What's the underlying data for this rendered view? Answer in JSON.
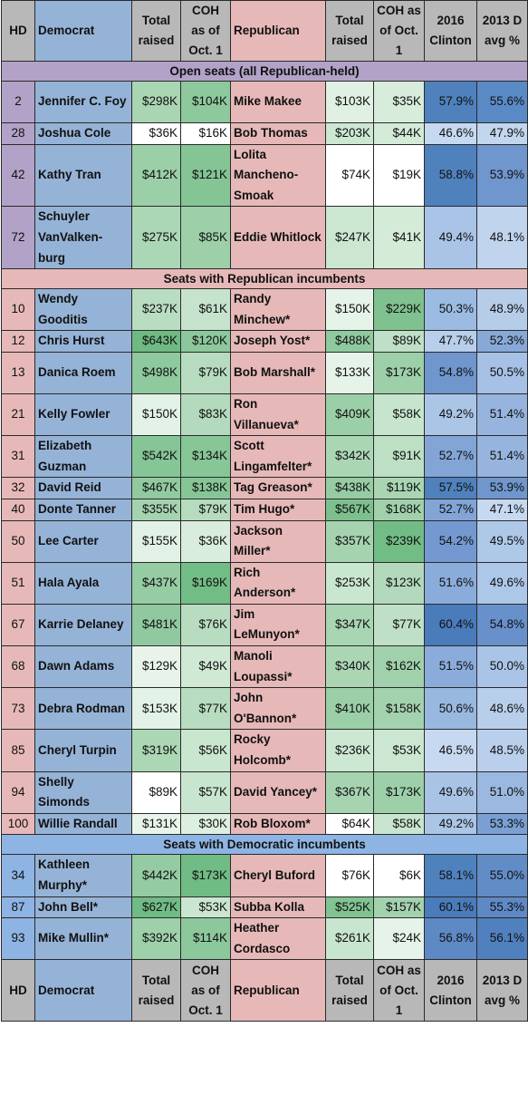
{
  "header": {
    "hd": "HD",
    "democrat": "Democrat",
    "total_raised": "Total raised",
    "coh": "COH as of Oct. 1",
    "republican": "Republican",
    "clinton": "2016 Clinton",
    "davg": "2013 D avg %"
  },
  "sections": [
    {
      "title": "Open seats (all Republican-held)",
      "color": "#b2a2c7",
      "hd_color": "#b2a2c7",
      "rows": [
        {
          "hd": "2",
          "dem": "Jennifer C. Foy",
          "dem_raised": "$298K",
          "dem_coh": "$104K",
          "rep": "Mike Makee",
          "rep_raised": "$103K",
          "rep_coh": "$35K",
          "clinton": "57.9%",
          "davg": "55.6%",
          "lines": 2,
          "c": [
            "#a9d5b3",
            "#8ec99d",
            "#e0f0e3",
            "#d7ecdb",
            "#4f81bd",
            "#5a8ac6"
          ]
        },
        {
          "hd": "28",
          "dem": "Joshua Cole",
          "dem_raised": "$36K",
          "dem_coh": "$16K",
          "rep": "Bob Thomas",
          "rep_raised": "$203K",
          "rep_coh": "$44K",
          "clinton": "46.6%",
          "davg": "47.9%",
          "lines": 1,
          "c": [
            "#ffffff",
            "#ffffff",
            "#cce7d2",
            "#d4ebd8",
            "#c6d9f0",
            "#c2d6ee"
          ]
        },
        {
          "hd": "42",
          "dem": "Kathy Tran",
          "dem_raised": "$412K",
          "dem_coh": "$121K",
          "rep": "Lolita Mancheno-Smoak",
          "rep_raised": "$74K",
          "rep_coh": "$19K",
          "clinton": "58.8%",
          "davg": "53.9%",
          "lines": 3,
          "c": [
            "#9bcfa7",
            "#85c595",
            "#ffffff",
            "#ffffff",
            "#4f81bd",
            "#6f96cd"
          ]
        },
        {
          "hd": "72",
          "dem": "Schuyler VanValken-burg",
          "dem_raised": "$275K",
          "dem_coh": "$85K",
          "rep": "Eddie Whitlock",
          "rep_raised": "$247K",
          "rep_coh": "$41K",
          "clinton": "49.4%",
          "davg": "48.1%",
          "lines": 3,
          "c": [
            "#acd7b6",
            "#9dd0a9",
            "#cbe7d1",
            "#d4ebd8",
            "#a9c4e6",
            "#c0d4ed"
          ]
        }
      ]
    },
    {
      "title": "Seats with Republican incumbents",
      "color": "#e6b9b8",
      "hd_color": "#e6b9b8",
      "rows": [
        {
          "hd": "10",
          "dem": "Wendy Gooditis",
          "dem_raised": "$237K",
          "dem_coh": "$61K",
          "rep": "Randy Minchew*",
          "rep_raised": "$150K",
          "rep_coh": "$229K",
          "clinton": "50.3%",
          "davg": "48.9%",
          "lines": 2,
          "c": [
            "#b9ddc1",
            "#c6e4cd",
            "#e5f3e8",
            "#7fc28f",
            "#9bbbe2",
            "#b6cdea"
          ]
        },
        {
          "hd": "12",
          "dem": "Chris Hurst",
          "dem_raised": "$643K",
          "dem_coh": "$120K",
          "rep": "Joseph Yost*",
          "rep_raised": "$488K",
          "rep_coh": "$89K",
          "clinton": "47.7%",
          "davg": "52.3%",
          "lines": 1,
          "c": [
            "#6fba83",
            "#8cc89c",
            "#8fc99e",
            "#bfe0c7",
            "#b7cfeb",
            "#87a9d8"
          ]
        },
        {
          "hd": "13",
          "dem": "Danica Roem",
          "dem_raised": "$498K",
          "dem_coh": "$79K",
          "rep": "Bob Marshall*",
          "rep_raised": "$133K",
          "rep_coh": "$173K",
          "clinton": "54.8%",
          "davg": "50.5%",
          "lines": 2,
          "c": [
            "#8fc99e",
            "#b6dbbf",
            "#e5f3e8",
            "#9dd0a9",
            "#6f96cd",
            "#a6c1e5"
          ]
        },
        {
          "hd": "21",
          "dem": "Kelly Fowler",
          "dem_raised": "$150K",
          "dem_coh": "$83K",
          "rep": "Ron Villanueva*",
          "rep_raised": "$409K",
          "rep_coh": "$58K",
          "clinton": "49.2%",
          "davg": "51.4%",
          "lines": 2,
          "c": [
            "#e3f2e6",
            "#b3dabc",
            "#9bcfa7",
            "#c7e5ce",
            "#abc5e6",
            "#96b4dd"
          ]
        },
        {
          "hd": "31",
          "dem": "Elizabeth Guzman",
          "dem_raised": "$542K",
          "dem_coh": "$134K",
          "rep": "Scott Lingamfelter*",
          "rep_raised": "$342K",
          "rep_coh": "$91K",
          "clinton": "52.7%",
          "davg": "51.4%",
          "lines": 2,
          "c": [
            "#86c596",
            "#87c697",
            "#aad6b4",
            "#bde0c5",
            "#82a5d6",
            "#96b4dd"
          ]
        },
        {
          "hd": "32",
          "dem": "David Reid",
          "dem_raised": "$467K",
          "dem_coh": "$138K",
          "rep": "Tag Greason*",
          "rep_raised": "$438K",
          "rep_coh": "$119K",
          "clinton": "57.5%",
          "davg": "53.9%",
          "lines": 1,
          "c": [
            "#92caa0",
            "#86c696",
            "#96cca3",
            "#a9d5b3",
            "#4f81bd",
            "#6f96cd"
          ]
        },
        {
          "hd": "40",
          "dem": "Donte Tanner",
          "dem_raised": "$355K",
          "dem_coh": "$79K",
          "rep": "Tim Hugo*",
          "rep_raised": "$567K",
          "rep_coh": "$168K",
          "clinton": "52.7%",
          "davg": "47.1%",
          "lines": 1,
          "c": [
            "#a4d3af",
            "#b6dbbf",
            "#7dc08e",
            "#a0d1ab",
            "#82a5d6",
            "#c6d9f0"
          ]
        },
        {
          "hd": "50",
          "dem": "Lee Carter",
          "dem_raised": "$155K",
          "dem_coh": "$36K",
          "rep": "Jackson Miller*",
          "rep_raised": "$357K",
          "rep_coh": "$239K",
          "clinton": "54.2%",
          "davg": "49.5%",
          "lines": 2,
          "c": [
            "#e2f1e5",
            "#d8edde",
            "#a5d3b0",
            "#72bd86",
            "#7399d0",
            "#aec8e8"
          ]
        },
        {
          "hd": "51",
          "dem": "Hala Ayala",
          "dem_raised": "$437K",
          "dem_coh": "$169K",
          "rep": "Rich Anderson*",
          "rep_raised": "$253K",
          "rep_coh": "$123K",
          "clinton": "51.6%",
          "davg": "49.6%",
          "lines": 2,
          "c": [
            "#96cca3",
            "#72bd86",
            "#c9e6cf",
            "#b2d9bb",
            "#8aacda",
            "#adc7e8"
          ]
        },
        {
          "hd": "67",
          "dem": "Karrie Delaney",
          "dem_raised": "$481K",
          "dem_coh": "$76K",
          "rep": "Jim LeMunyon*",
          "rep_raised": "$347K",
          "rep_coh": "$77K",
          "clinton": "60.4%",
          "davg": "54.8%",
          "lines": 2,
          "c": [
            "#90c99f",
            "#b8dcc0",
            "#a8d5b2",
            "#bfe0c6",
            "#4a7bbb",
            "#6890ca"
          ]
        },
        {
          "hd": "68",
          "dem": "Dawn Adams",
          "dem_raised": "$129K",
          "dem_coh": "$49K",
          "rep": "Manoli Loupassi*",
          "rep_raised": "$340K",
          "rep_coh": "$162K",
          "clinton": "51.5%",
          "davg": "50.0%",
          "lines": 2,
          "c": [
            "#e8f4ea",
            "#cfe9d5",
            "#aad6b4",
            "#a1d1ac",
            "#8bacdb",
            "#a9c4e6"
          ]
        },
        {
          "hd": "73",
          "dem": "Debra Rodman",
          "dem_raised": "$153K",
          "dem_coh": "$77K",
          "rep": "John O'Bannon*",
          "rep_raised": "$410K",
          "rep_coh": "$158K",
          "clinton": "50.6%",
          "davg": "48.6%",
          "lines": 2,
          "c": [
            "#e3f2e6",
            "#b7dcbf",
            "#9bcfa7",
            "#a3d2ae",
            "#98b8e0",
            "#b8cfeb"
          ]
        },
        {
          "hd": "85",
          "dem": "Cheryl Turpin",
          "dem_raised": "$319K",
          "dem_coh": "$56K",
          "rep": "Rocky Holcomb*",
          "rep_raised": "$236K",
          "rep_coh": "$53K",
          "clinton": "46.5%",
          "davg": "48.5%",
          "lines": 2,
          "c": [
            "#abd7b5",
            "#c9e6cf",
            "#cce7d2",
            "#cbe7d1",
            "#c6d9f0",
            "#b9cfeb"
          ]
        },
        {
          "hd": "94",
          "dem": "Shelly Simonds",
          "dem_raised": "$89K",
          "dem_coh": "$57K",
          "rep": "David Yancey*",
          "rep_raised": "$367K",
          "rep_coh": "$173K",
          "clinton": "49.6%",
          "davg": "51.0%",
          "lines": 2,
          "c": [
            "#ffffff",
            "#c8e5cf",
            "#a6d4b1",
            "#9dd0a9",
            "#a8c3e5",
            "#9bb9e0"
          ]
        },
        {
          "hd": "100",
          "dem": "Willie Randall",
          "dem_raised": "$131K",
          "dem_coh": "$30K",
          "rep": "Rob Bloxom*",
          "rep_raised": "$64K",
          "rep_coh": "$58K",
          "clinton": "49.2%",
          "davg": "53.3%",
          "lines": 1,
          "c": [
            "#e8f4ea",
            "#ddefe1",
            "#ffffff",
            "#c8e5cf",
            "#abc5e6",
            "#7a9fd3"
          ]
        }
      ]
    },
    {
      "title": "Seats with Democratic incumbents",
      "color": "#8eb4e3",
      "hd_color": "#8eb4e3",
      "rows": [
        {
          "hd": "34",
          "dem": "Kathleen Murphy*",
          "dem_raised": "$442K",
          "dem_coh": "$173K",
          "rep": "Cheryl Buford",
          "rep_raised": "$76K",
          "rep_coh": "$6K",
          "clinton": "58.1%",
          "davg": "55.0%",
          "lines": 2,
          "c": [
            "#95cba2",
            "#70bc84",
            "#ffffff",
            "#ffffff",
            "#4f81bd",
            "#628cc6"
          ]
        },
        {
          "hd": "87",
          "dem": "John Bell*",
          "dem_raised": "$627K",
          "dem_coh": "$53K",
          "rep": "Subba Kolla",
          "rep_raised": "$525K",
          "rep_coh": "$157K",
          "clinton": "60.1%",
          "davg": "55.3%",
          "lines": 1,
          "c": [
            "#70bc84",
            "#cae6d0",
            "#82c392",
            "#a3d2ae",
            "#4a7bbb",
            "#5e89c5"
          ]
        },
        {
          "hd": "93",
          "dem": "Mike Mullin*",
          "dem_raised": "$392K",
          "dem_coh": "$114K",
          "rep": "Heather Cordasco",
          "rep_raised": "$261K",
          "rep_coh": "$24K",
          "clinton": "56.8%",
          "davg": "56.1%",
          "lines": 2,
          "c": [
            "#9ed0a9",
            "#8cc89c",
            "#c8e5cf",
            "#e6f3e9",
            "#5e89c5",
            "#5080bd"
          ]
        }
      ]
    }
  ],
  "colors": {
    "header_bg": "#b8b8b8",
    "democrat_bg": "#95b3d7",
    "republican_bg": "#e6b9b8",
    "border": "#2a2a2a"
  }
}
